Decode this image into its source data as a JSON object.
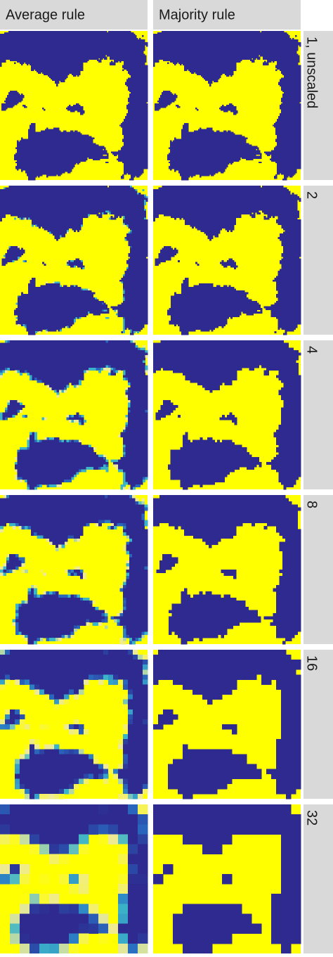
{
  "columns": [
    "Average rule",
    "Majority rule"
  ],
  "rows": [
    "1, unscaled",
    "2",
    "4",
    "8",
    "16",
    "32"
  ]
}
